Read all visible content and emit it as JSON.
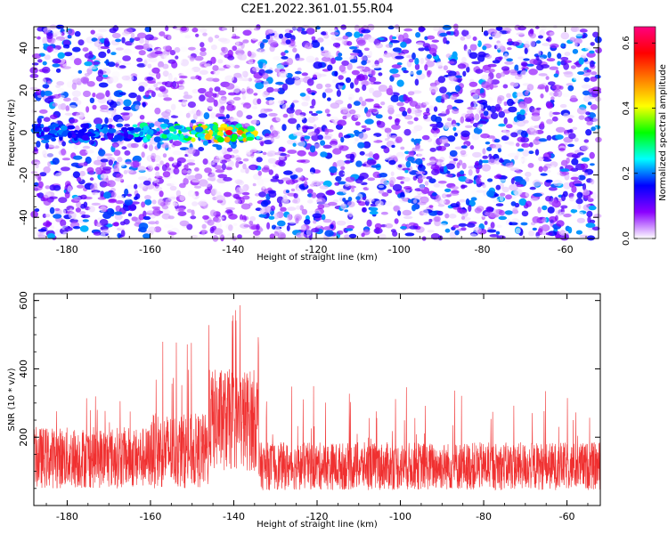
{
  "title": "C2E1.2022.361.01.55.R04",
  "chart_data": [
    {
      "type": "heatmap",
      "xlabel": "Height of straight line (km)",
      "ylabel": "Frequency (Hz)",
      "xlim": [
        -188,
        -52
      ],
      "ylim": [
        -50,
        50
      ],
      "x_ticks": [
        -180,
        -160,
        -140,
        -120,
        -100,
        -80,
        -60
      ],
      "y_ticks": [
        -40,
        -20,
        0,
        20,
        40
      ],
      "colorbar": {
        "label": "Normalized spectral amplitude",
        "range": [
          0,
          0.65
        ],
        "ticks": [
          0.0,
          0.2,
          0.4,
          0.6
        ],
        "colors": [
          "#ffffff",
          "#8a00ff",
          "#0000ff",
          "#00ffff",
          "#00ff00",
          "#ffff00",
          "#ff8000",
          "#ff0000",
          "#ff0080"
        ]
      },
      "features": [
        {
          "kind": "band",
          "x_range": [
            -188,
            -134
          ],
          "frequency": 0,
          "peak_amplitude": 0.6,
          "peak_x": -141
        }
      ]
    },
    {
      "type": "line",
      "xlabel": "Height of straight line (km)",
      "ylabel": "SNR (10 * v/v)",
      "xlim": [
        -188,
        -52
      ],
      "ylim": [
        0,
        620
      ],
      "x_ticks": [
        -180,
        -160,
        -140,
        -120,
        -100,
        -80,
        -60
      ],
      "y_ticks": [
        200,
        400,
        600
      ],
      "color": "#f03030",
      "segments": [
        {
          "x_range": [
            -188,
            -160
          ],
          "mean": 140,
          "spread": 90,
          "max": 330
        },
        {
          "x_range": [
            -160,
            -146
          ],
          "mean": 160,
          "spread": 110,
          "max": 480
        },
        {
          "x_range": [
            -146,
            -134
          ],
          "mean": 250,
          "spread": 150,
          "max": 610
        },
        {
          "x_range": [
            -134,
            -52
          ],
          "mean": 115,
          "spread": 70,
          "max": 350
        }
      ]
    }
  ]
}
